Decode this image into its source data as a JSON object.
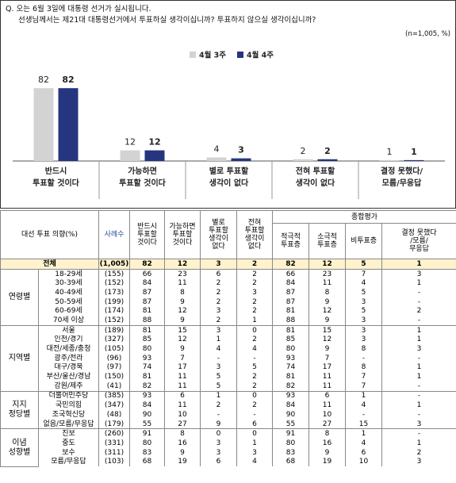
{
  "question": {
    "line1": "Q. 오는 6월 3일에 대통령 선거가 실시됩니다.",
    "line2": "선생님께서는 제21대 대통령선거에서 투표하실 생각이십니까? 투표하지 않으실 생각이십니까?",
    "note": "(n=1,005, %)"
  },
  "chart_data": {
    "type": "bar",
    "categories": [
      "반드시\n투표할 것이다",
      "가능하면\n투표할 것이다",
      "별로 투표할\n생각이 없다",
      "전혀 투표할\n생각이 없다",
      "결정 못했다/\n모름/무응답"
    ],
    "series": [
      {
        "name": "4월 3주",
        "color": "#d3d3d3",
        "values": [
          82,
          12,
          4,
          2,
          1
        ]
      },
      {
        "name": "4월 4주",
        "color": "#263580",
        "values": [
          82,
          12,
          3,
          2,
          1
        ]
      }
    ],
    "ylim": [
      0,
      100
    ]
  },
  "table": {
    "header": {
      "title": "대선 투표 의향(%)",
      "n": "사례수",
      "columns": [
        "반드시\n투표할\n것이다",
        "가능하면\n투표할\n것이다",
        "별로\n투표할\n생각이\n없다",
        "전혀\n투표할\n생각이\n없다"
      ],
      "group": "종합평가",
      "subcolumns": [
        "적극적\n투표층",
        "소극적\n투표층",
        "비투표층",
        "결정 못했다\n/모름/\n무응답"
      ]
    },
    "total": {
      "label": "전체",
      "cells": [
        "(1,005)",
        "82",
        "12",
        "3",
        "2",
        "82",
        "12",
        "5",
        "1"
      ]
    },
    "groups": [
      {
        "label": "연령별",
        "rows": [
          {
            "label": "18-29세",
            "cells": [
              "(155)",
              "66",
              "23",
              "6",
              "2",
              "66",
              "23",
              "7",
              "3"
            ]
          },
          {
            "label": "30-39세",
            "cells": [
              "(152)",
              "84",
              "11",
              "2",
              "2",
              "84",
              "11",
              "4",
              "1"
            ]
          },
          {
            "label": "40-49세",
            "cells": [
              "(173)",
              "87",
              "8",
              "2",
              "3",
              "87",
              "8",
              "5",
              "-"
            ]
          },
          {
            "label": "50-59세",
            "cells": [
              "(199)",
              "87",
              "9",
              "2",
              "2",
              "87",
              "9",
              "3",
              "-"
            ]
          },
          {
            "label": "60-69세",
            "cells": [
              "(174)",
              "81",
              "12",
              "3",
              "2",
              "81",
              "12",
              "5",
              "2"
            ]
          },
          {
            "label": "70세 이상",
            "cells": [
              "(152)",
              "88",
              "9",
              "2",
              "1",
              "88",
              "9",
              "3",
              "-"
            ]
          }
        ]
      },
      {
        "label": "지역별",
        "rows": [
          {
            "label": "서울",
            "cells": [
              "(189)",
              "81",
              "15",
              "3",
              "0",
              "81",
              "15",
              "3",
              "1"
            ]
          },
          {
            "label": "인천/경기",
            "cells": [
              "(327)",
              "85",
              "12",
              "1",
              "2",
              "85",
              "12",
              "3",
              "1"
            ]
          },
          {
            "label": "대전/세종/충청",
            "cells": [
              "(105)",
              "80",
              "9",
              "4",
              "4",
              "80",
              "9",
              "8",
              "3"
            ]
          },
          {
            "label": "광주/전라",
            "cells": [
              "(96)",
              "93",
              "7",
              "-",
              "-",
              "93",
              "7",
              "-",
              "-"
            ]
          },
          {
            "label": "대구/경북",
            "cells": [
              "(97)",
              "74",
              "17",
              "3",
              "5",
              "74",
              "17",
              "8",
              "1"
            ]
          },
          {
            "label": "부산/울산/경남",
            "cells": [
              "(150)",
              "81",
              "11",
              "5",
              "2",
              "81",
              "11",
              "7",
              "1"
            ]
          },
          {
            "label": "강원/제주",
            "cells": [
              "(41)",
              "82",
              "11",
              "5",
              "2",
              "82",
              "11",
              "7",
              "-"
            ]
          }
        ]
      },
      {
        "label": "지지\n정당별",
        "rows": [
          {
            "label": "더불어민주당",
            "cells": [
              "(385)",
              "93",
              "6",
              "1",
              "0",
              "93",
              "6",
              "1",
              "-"
            ]
          },
          {
            "label": "국민의힘",
            "cells": [
              "(347)",
              "84",
              "11",
              "2",
              "2",
              "84",
              "11",
              "4",
              "1"
            ]
          },
          {
            "label": "조국혁신당",
            "cells": [
              "(48)",
              "90",
              "10",
              "-",
              "-",
              "90",
              "10",
              "-",
              "-"
            ]
          },
          {
            "label": "없음/모름/무응답",
            "cells": [
              "(179)",
              "55",
              "27",
              "9",
              "6",
              "55",
              "27",
              "15",
              "3"
            ]
          }
        ]
      },
      {
        "label": "이념\n성향별",
        "rows": [
          {
            "label": "진보",
            "cells": [
              "(260)",
              "91",
              "8",
              "0",
              "0",
              "91",
              "8",
              "1",
              "-"
            ]
          },
          {
            "label": "중도",
            "cells": [
              "(331)",
              "80",
              "16",
              "3",
              "1",
              "80",
              "16",
              "4",
              "1"
            ]
          },
          {
            "label": "보수",
            "cells": [
              "(311)",
              "83",
              "9",
              "3",
              "3",
              "83",
              "9",
              "6",
              "2"
            ]
          },
          {
            "label": "모름/무응답",
            "cells": [
              "(103)",
              "68",
              "19",
              "6",
              "4",
              "68",
              "19",
              "10",
              "3"
            ]
          }
        ]
      }
    ]
  }
}
